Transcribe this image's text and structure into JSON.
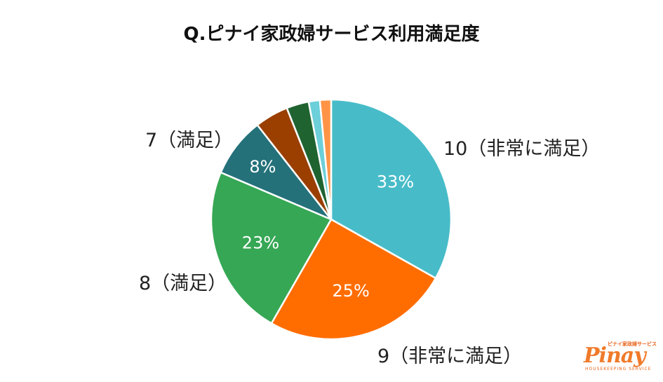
{
  "title": "Q.ピナイ家政婦サービス利用満足度",
  "chart_data": {
    "type": "pie",
    "title": "Q.ピナイ家政婦サービス利用満足度",
    "slices": [
      {
        "label": "10（非常に満足）",
        "value": 33,
        "value_label": "33%",
        "color": "#47bcc8"
      },
      {
        "label": "9（非常に満足）",
        "value": 25,
        "value_label": "25%",
        "color": "#ff6d00"
      },
      {
        "label": "8（満足）",
        "value": 23,
        "value_label": "23%",
        "color": "#36a754"
      },
      {
        "label": "7（満足）",
        "value": 8,
        "value_label": "8%",
        "color": "#24717a"
      },
      {
        "label": "",
        "value": 4.5,
        "value_label": "",
        "color": "#9a3f00"
      },
      {
        "label": "",
        "value": 3,
        "value_label": "",
        "color": "#1f6331"
      },
      {
        "label": "",
        "value": 1.5,
        "value_label": "",
        "color": "#6ccfd9"
      },
      {
        "label": "",
        "value": 1.5,
        "value_label": "",
        "color": "#ff9447"
      }
    ]
  },
  "logo": {
    "brand": "Pinay",
    "tagline": "ピナイ家政婦サービス",
    "subtitle": "HOUSEKEEPING SERVICE"
  }
}
